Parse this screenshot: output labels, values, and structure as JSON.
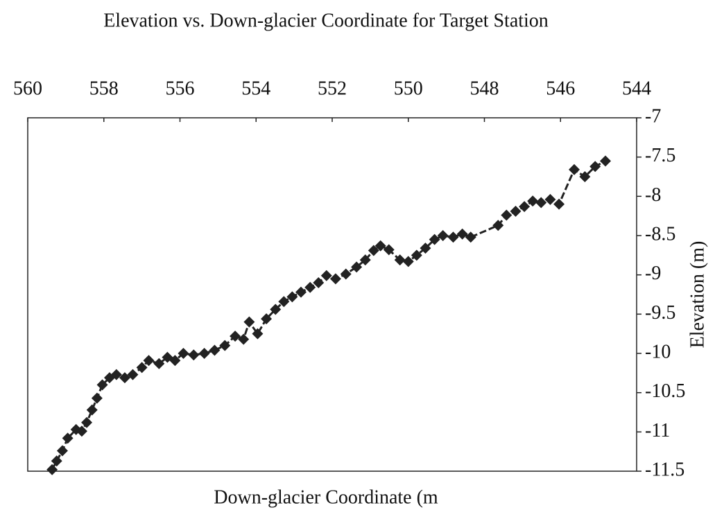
{
  "chart_data": {
    "type": "line",
    "title": "Elevation vs. Down-glacier Coordinate for  Target Station",
    "xlabel": "Down-glacier Coordinate (m",
    "ylabel": "Elevation (m)",
    "xlim": [
      560,
      544
    ],
    "xticks": [
      560,
      558,
      556,
      554,
      552,
      550,
      548,
      546,
      544
    ],
    "ylim": [
      -11.5,
      -7
    ],
    "yticks": [
      -7,
      -7.5,
      -8,
      -8.5,
      -9,
      -9.5,
      -10,
      -10.5,
      -11,
      -11.5
    ],
    "grid": false,
    "series": [
      {
        "name": "Target Station",
        "color": "#222222",
        "x": [
          559.36,
          559.24,
          559.09,
          558.95,
          558.73,
          558.58,
          558.45,
          558.31,
          558.18,
          558.04,
          557.85,
          557.67,
          557.45,
          557.24,
          557.0,
          556.82,
          556.55,
          556.33,
          556.13,
          555.91,
          555.64,
          555.36,
          555.09,
          554.82,
          554.55,
          554.33,
          554.18,
          553.96,
          553.73,
          553.49,
          553.27,
          553.05,
          552.82,
          552.58,
          552.36,
          552.15,
          551.91,
          551.64,
          551.36,
          551.13,
          550.91,
          550.73,
          550.51,
          550.22,
          550.0,
          549.78,
          549.55,
          549.31,
          549.09,
          548.82,
          548.58,
          548.36,
          547.64,
          547.42,
          547.18,
          546.95,
          546.73,
          546.51,
          546.27,
          546.04,
          545.64,
          545.36,
          545.09,
          544.82
        ],
        "values": [
          -11.48,
          -11.37,
          -11.24,
          -11.08,
          -10.97,
          -10.99,
          -10.88,
          -10.72,
          -10.57,
          -10.4,
          -10.31,
          -10.27,
          -10.31,
          -10.27,
          -10.18,
          -10.09,
          -10.13,
          -10.05,
          -10.09,
          -10.0,
          -10.02,
          -10.0,
          -9.96,
          -9.9,
          -9.78,
          -9.82,
          -9.6,
          -9.75,
          -9.56,
          -9.44,
          -9.34,
          -9.28,
          -9.22,
          -9.16,
          -9.1,
          -9.01,
          -9.05,
          -8.99,
          -8.9,
          -8.81,
          -8.69,
          -8.63,
          -8.68,
          -8.81,
          -8.83,
          -8.75,
          -8.66,
          -8.55,
          -8.5,
          -8.52,
          -8.48,
          -8.52,
          -8.37,
          -8.24,
          -8.19,
          -8.13,
          -8.06,
          -8.08,
          -8.04,
          -8.1,
          -7.66,
          -7.75,
          -7.62,
          -7.55
        ]
      }
    ]
  }
}
